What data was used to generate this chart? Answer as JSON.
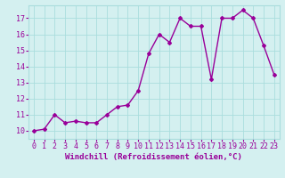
{
  "x": [
    0,
    1,
    2,
    3,
    4,
    5,
    6,
    7,
    8,
    9,
    10,
    11,
    12,
    13,
    14,
    15,
    16,
    17,
    18,
    19,
    20,
    21,
    22,
    23
  ],
  "y": [
    10.0,
    10.1,
    11.0,
    10.5,
    10.6,
    10.5,
    10.5,
    11.0,
    11.5,
    11.6,
    12.5,
    14.8,
    16.0,
    15.5,
    17.0,
    16.5,
    16.5,
    13.2,
    17.0,
    17.0,
    17.5,
    17.0,
    15.3,
    13.5
  ],
  "line_color": "#990099",
  "marker": "D",
  "marker_size": 2,
  "background_color": "#d4f0f0",
  "grid_color": "#aadddd",
  "xlabel": "Windchill (Refroidissement éolien,°C)",
  "xlim": [
    -0.5,
    23.5
  ],
  "ylim": [
    9.5,
    17.8
  ],
  "yticks": [
    10,
    11,
    12,
    13,
    14,
    15,
    16,
    17
  ],
  "xtick_labels": [
    "0",
    "1",
    "2",
    "3",
    "4",
    "5",
    "6",
    "7",
    "8",
    "9",
    "10",
    "11",
    "12",
    "13",
    "14",
    "15",
    "16",
    "17",
    "18",
    "19",
    "20",
    "21",
    "22",
    "23"
  ],
  "xlabel_fontsize": 6.5,
  "tick_fontsize": 6,
  "line_width": 1.0
}
